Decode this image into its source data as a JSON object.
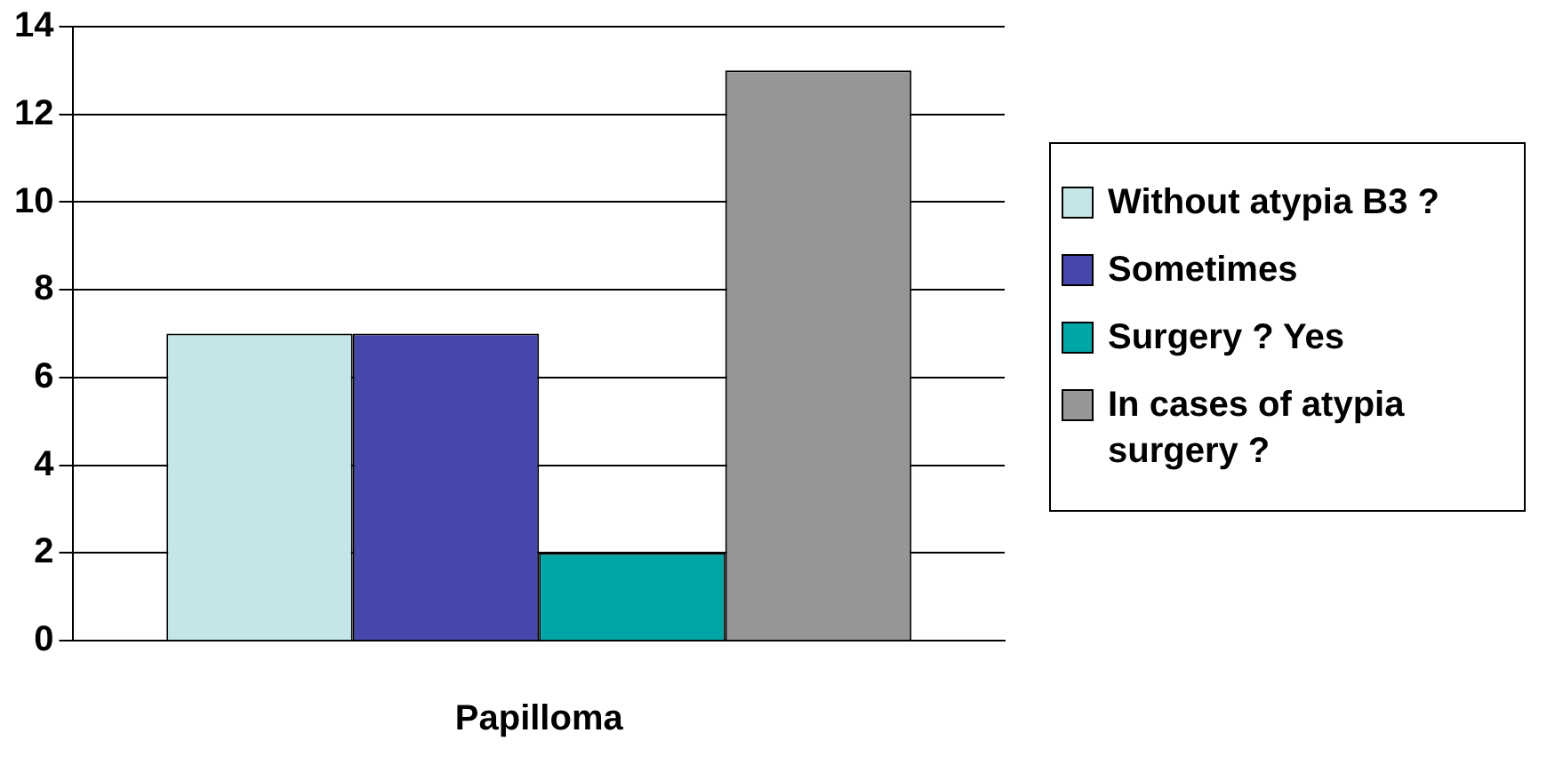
{
  "chart_data": {
    "type": "bar",
    "xlabel": "Papilloma",
    "categories": [
      null
    ],
    "series": [
      {
        "name": "Without atypia B3 ?",
        "color": "#c5e6e8",
        "values": [
          7
        ]
      },
      {
        "name": "Sometimes",
        "color": "#4649ab",
        "values": [
          7
        ]
      },
      {
        "name": "Surgery ? Yes",
        "color": "#00a6a6",
        "values": [
          2
        ]
      },
      {
        "name": "In cases of atypia surgery ?",
        "color": "#969696",
        "values": [
          13
        ]
      }
    ],
    "ylim": [
      0,
      14
    ],
    "yticks": [
      0,
      2,
      4,
      6,
      8,
      10,
      12,
      14
    ],
    "grid": "y",
    "legend": "right"
  }
}
